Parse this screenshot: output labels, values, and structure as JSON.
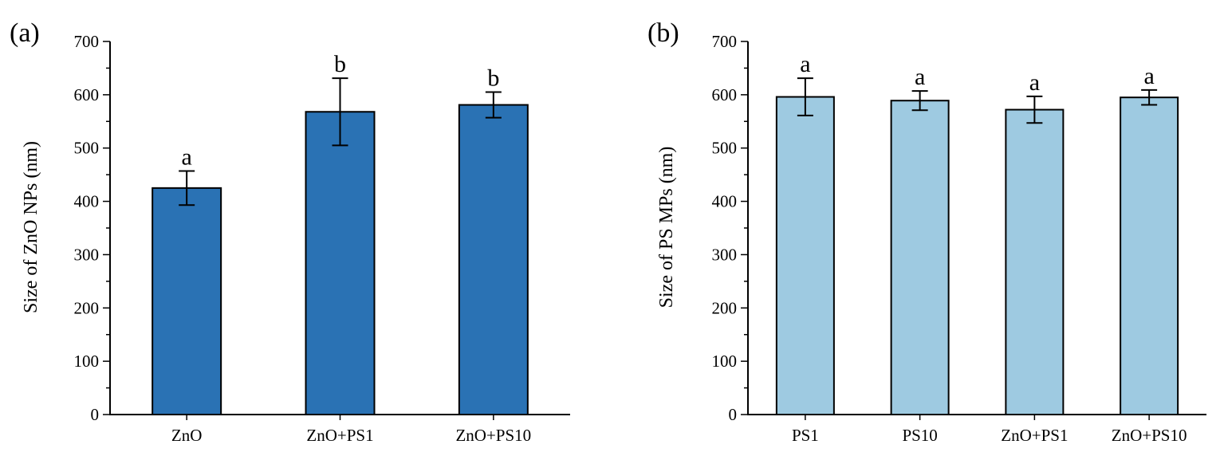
{
  "chart_data": [
    {
      "panel_label": "(a)",
      "type": "bar",
      "ylabel": "Size of ZnO NPs (nm)",
      "ylim": [
        0,
        700
      ],
      "yticks": [
        "0",
        "100",
        "200",
        "300",
        "400",
        "500",
        "600",
        "700"
      ],
      "categories": [
        "ZnO",
        "ZnO+PS1",
        "ZnO+PS10"
      ],
      "values": [
        425,
        568,
        581
      ],
      "errors": [
        32,
        63,
        24
      ],
      "significance": [
        "a",
        "b",
        "b"
      ],
      "bar_color": "#2a72b4",
      "grid": false
    },
    {
      "panel_label": "(b)",
      "type": "bar",
      "ylabel": "Size of PS MPs (nm)",
      "ylim": [
        0,
        700
      ],
      "yticks": [
        "0",
        "100",
        "200",
        "300",
        "400",
        "500",
        "600",
        "700"
      ],
      "categories": [
        "PS1",
        "PS10",
        "ZnO+PS1",
        "ZnO+PS10"
      ],
      "values": [
        596,
        589,
        572,
        595
      ],
      "errors": [
        35,
        18,
        25,
        14
      ],
      "significance": [
        "a",
        "a",
        "a",
        "a"
      ],
      "bar_color": "#9ecae1",
      "grid": false
    }
  ]
}
